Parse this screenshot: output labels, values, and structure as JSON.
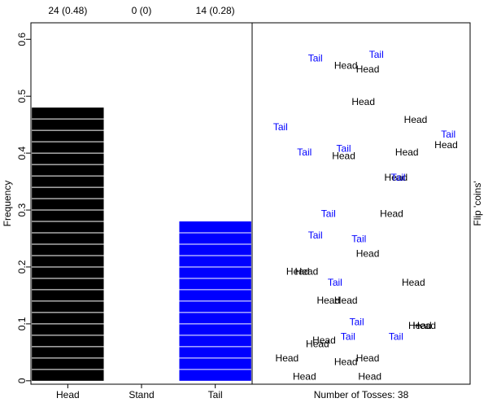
{
  "chart_data": [
    {
      "type": "bar",
      "ylabel": "Frequency",
      "categories": [
        "Head",
        "Stand",
        "Tail"
      ],
      "values": [
        0.48,
        0,
        0.28
      ],
      "value_labels": [
        "24 (0.48)",
        "0 (0)",
        "14 (0.28)"
      ],
      "colors": [
        "#000000",
        "#000000",
        "#0000ff"
      ],
      "ylim": [
        -0.006,
        0.629
      ],
      "yticks": [
        0,
        0.1,
        0.2,
        0.3,
        0.4,
        0.5,
        0.6
      ]
    },
    {
      "type": "scatter",
      "xlabel": "Number of Tosses: 38",
      "ylabel": "Flip 'coins'",
      "xlim": [
        0,
        1
      ],
      "ylim": [
        0,
        1
      ],
      "series": [
        {
          "name": "Head",
          "color": "#000000",
          "x": [
            0.43,
            0.53,
            0.51,
            0.75,
            0.89,
            0.71,
            0.42,
            0.66,
            0.64,
            0.53,
            0.21,
            0.25,
            0.74,
            0.43,
            0.35,
            0.33,
            0.3,
            0.77,
            0.79,
            0.16,
            0.43,
            0.53,
            0.24,
            0.54
          ],
          "values": [
            0.88,
            0.87,
            0.78,
            0.73,
            0.66,
            0.64,
            0.63,
            0.57,
            0.47,
            0.36,
            0.31,
            0.31,
            0.28,
            0.23,
            0.23,
            0.12,
            0.11,
            0.16,
            0.16,
            0.07,
            0.06,
            0.07,
            0.02,
            0.02
          ]
        },
        {
          "name": "Tail",
          "color": "#0000ff",
          "x": [
            0.29,
            0.57,
            0.13,
            0.9,
            0.24,
            0.42,
            0.67,
            0.35,
            0.29,
            0.49,
            0.38,
            0.48,
            0.44,
            0.66
          ],
          "values": [
            0.9,
            0.91,
            0.71,
            0.69,
            0.64,
            0.65,
            0.57,
            0.47,
            0.41,
            0.4,
            0.28,
            0.17,
            0.13,
            0.13
          ]
        }
      ]
    }
  ]
}
